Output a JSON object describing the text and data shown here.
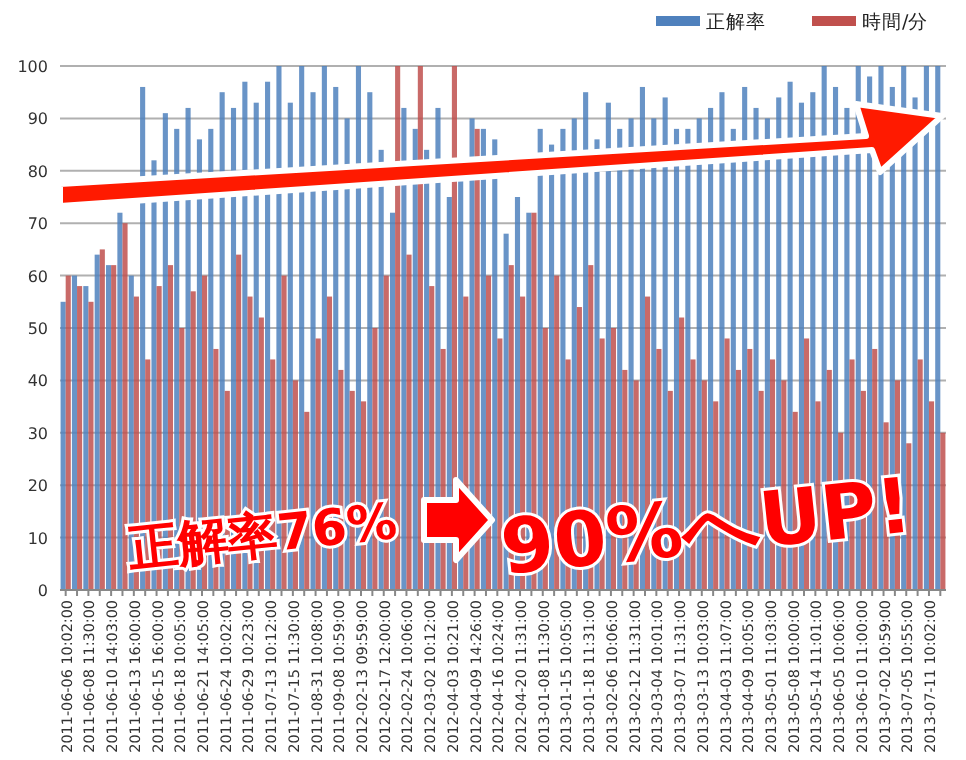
{
  "chart_data": {
    "type": "bar",
    "categories": [
      "2011-06-06 10:02:00",
      null,
      "2011-06-08 11:30:00",
      null,
      "2011-06-10 14:03:00",
      null,
      "2011-06-13 16:00:00",
      null,
      "2011-06-15 16:00:00",
      null,
      "2011-06-18 10:05:00",
      null,
      "2011-06-21 14:05:00",
      null,
      "2011-06-24 10:02:00",
      null,
      "2011-06-29 10:23:00",
      null,
      "2011-07-13 10:12:00",
      null,
      "2011-07-15 11:30:00",
      null,
      "2011-08-31 10:08:00",
      null,
      "2011-09-08 10:59:00",
      null,
      "2012-02-13 09:59:00",
      null,
      "2012-02-17 12:00:00",
      null,
      "2012-02-24 10:06:00",
      null,
      "2012-03-02 10:12:00",
      null,
      "2012-04-03 10:21:00",
      null,
      "2012-04-09 14:26:00",
      null,
      "2012-04-16 10:24:00",
      null,
      "2012-04-20 11:31:00",
      null,
      "2013-01-08 11:30:00",
      null,
      "2013-01-15 10:05:00",
      null,
      "2013-01-18 11:31:00",
      null,
      "2013-02-06 10:06:00",
      null,
      "2013-02-12 11:31:00",
      null,
      "2013-03-04 10:01:00",
      null,
      "2013-03-07 11:31:00",
      null,
      "2013-03-13 10:03:00",
      null,
      "2013-04-03 11:07:00",
      null,
      "2013-04-09 10:05:00",
      null,
      "2013-05-01 11:03:00",
      null,
      "2013-05-08 10:00:00",
      null,
      "2013-05-14 11:01:00",
      null,
      "2013-06-05 10:06:00",
      null,
      "2013-06-10 11:00:00",
      null,
      "2013-07-02 10:59:00",
      null,
      "2013-07-05 10:55:00",
      null,
      "2013-07-11 10:02:00",
      null
    ],
    "series": [
      {
        "name": "正解率",
        "color": "#4f81bd",
        "values": [
          55,
          60,
          58,
          64,
          62,
          72,
          60,
          96,
          82,
          91,
          88,
          92,
          86,
          88,
          95,
          92,
          97,
          93,
          97,
          100,
          93,
          100,
          95,
          100,
          96,
          90,
          100,
          95,
          84,
          72,
          92,
          88,
          84,
          92,
          75,
          78,
          90,
          88,
          86,
          68,
          75,
          72,
          88,
          85,
          88,
          90,
          95,
          86,
          93,
          88,
          90,
          96,
          90,
          94,
          88,
          88,
          90,
          92,
          95,
          88,
          96,
          92,
          90,
          94,
          97,
          93,
          95,
          100,
          96,
          92,
          100,
          98,
          100,
          96,
          100,
          94,
          100,
          100
        ]
      },
      {
        "name": "時間/分",
        "color": "#c0504d",
        "values": [
          60,
          58,
          55,
          65,
          62,
          70,
          56,
          44,
          58,
          62,
          50,
          57,
          60,
          46,
          38,
          64,
          56,
          52,
          44,
          60,
          40,
          34,
          48,
          56,
          42,
          38,
          36,
          50,
          60,
          100,
          64,
          100,
          58,
          46,
          100,
          56,
          88,
          60,
          48,
          62,
          56,
          72,
          50,
          60,
          44,
          54,
          62,
          48,
          50,
          42,
          40,
          56,
          46,
          38,
          52,
          44,
          40,
          36,
          48,
          42,
          46,
          38,
          44,
          40,
          34,
          48,
          36,
          42,
          30,
          44,
          38,
          46,
          32,
          40,
          28,
          44,
          36,
          30
        ]
      }
    ],
    "ylim": [
      0,
      100
    ],
    "yticks": [
      0,
      10,
      20,
      30,
      40,
      50,
      60,
      70,
      80,
      90,
      100
    ],
    "grid": "y",
    "legend": "top right",
    "annotations": [
      "正解率76%",
      "90%へUP!"
    ]
  }
}
